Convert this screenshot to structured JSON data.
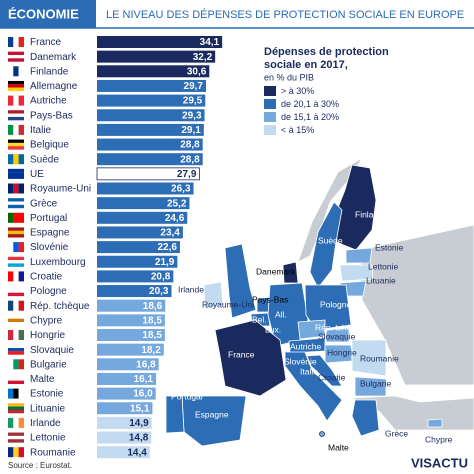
{
  "header": {
    "section": "ÉCONOMIE",
    "title": "LE NIVEAU DES DÉPENSES DE PROTECTION SOCIALE EN EUROPE"
  },
  "chart_data": {
    "type": "bar",
    "orientation": "horizontal",
    "categories": [
      "France",
      "Danemark",
      "Finlande",
      "Allemagne",
      "Autriche",
      "Pays-Bas",
      "Italie",
      "Belgique",
      "Suède",
      "UE",
      "Royaume-Uni",
      "Grèce",
      "Portugal",
      "Espagne",
      "Slovénie",
      "Luxembourg",
      "Croatie",
      "Pologne",
      "Rép. tchèque",
      "Chypre",
      "Hongrie",
      "Slovaquie",
      "Bulgarie",
      "Malte",
      "Estonie",
      "Lituanie",
      "Irlande",
      "Lettonie",
      "Roumanie"
    ],
    "values": [
      34.1,
      32.2,
      30.6,
      29.7,
      29.5,
      29.3,
      29.1,
      28.8,
      28.8,
      27.9,
      26.3,
      25.2,
      24.6,
      23.4,
      22.6,
      21.9,
      20.8,
      20.3,
      18.6,
      18.5,
      18.5,
      18.2,
      16.8,
      16.1,
      16.0,
      15.1,
      14.9,
      14.8,
      14.4
    ],
    "value_labels": [
      "34,1",
      "32,2",
      "30,6",
      "29,7",
      "29,5",
      "29,3",
      "29,1",
      "28,8",
      "28,8",
      "27,9",
      "26,3",
      "25,2",
      "24,6",
      "23,4",
      "22,6",
      "21,9",
      "20,8",
      "20,3",
      "18,6",
      "18,5",
      "18,5",
      "18,2",
      "16,8",
      "16,1",
      "16,0",
      "15,1",
      "14,9",
      "14,8",
      "14,4"
    ],
    "colors": [
      "#1b2a5e",
      "#1b2a5e",
      "#1b2a5e",
      "#2d6db5",
      "#2d6db5",
      "#2d6db5",
      "#2d6db5",
      "#2d6db5",
      "#2d6db5",
      "#ffffff",
      "#2d6db5",
      "#2d6db5",
      "#2d6db5",
      "#2d6db5",
      "#2d6db5",
      "#2d6db5",
      "#2d6db5",
      "#2d6db5",
      "#75a8dc",
      "#75a8dc",
      "#75a8dc",
      "#75a8dc",
      "#75a8dc",
      "#75a8dc",
      "#75a8dc",
      "#75a8dc",
      "#c2dbf1",
      "#c2dbf1",
      "#c2dbf1"
    ]
  },
  "legend": {
    "title": "Dépenses de protection sociale en 2017,",
    "subtitle": "en % du PIB",
    "items": [
      {
        "label": "> à 30%",
        "color": "#1b2a5e"
      },
      {
        "label": "de 20,1 à 30%",
        "color": "#2d6db5"
      },
      {
        "label": "de 15,1 à 20%",
        "color": "#75a8dc"
      },
      {
        "label": "< à 15%",
        "color": "#c2dbf1"
      }
    ]
  },
  "map": {
    "labels": [
      "Finlande",
      "Suède",
      "Estonie",
      "Lettonie",
      "Lituanie",
      "Danemark",
      "Irlande",
      "Royaume-Uni",
      "Pays-Bas",
      "Pologne",
      "Bel.",
      "Lux.",
      "All.",
      "Rép. tchèque",
      "Slovaquie",
      "Autriche",
      "Hongrie",
      "Roumanie",
      "France",
      "Slovénie",
      "Croatie",
      "Italie",
      "Bulgarie",
      "Portugal",
      "Espagne",
      "Grèce",
      "Malte",
      "Chypre"
    ]
  },
  "footer": {
    "source": "Source : Eurostat.",
    "brand": "VISACTU"
  }
}
